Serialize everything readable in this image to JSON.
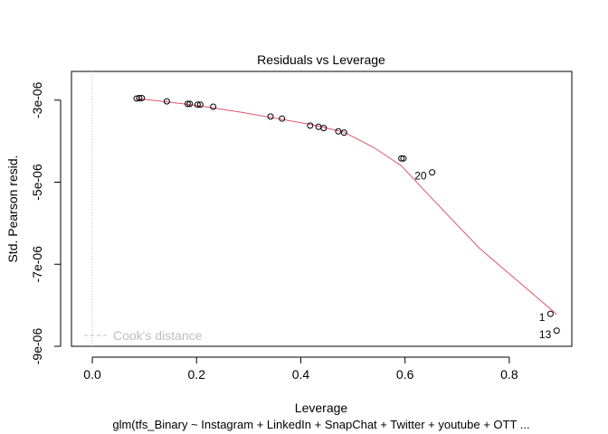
{
  "chart_data": {
    "type": "scatter",
    "title": "Residuals vs Leverage",
    "xlabel": "Leverage",
    "ylabel": "Std. Pearson resid.",
    "subtitle": "glm(tfs_Binary ~ Instagram + LinkedIn + SnapChat + Twitter + youtube + OTT  ...",
    "xlim": [
      -0.04,
      0.92
    ],
    "ylim": [
      -9e-06,
      -2.3e-06
    ],
    "x_ticks": [
      0.0,
      0.2,
      0.4,
      0.6,
      0.8
    ],
    "x_tick_labels": [
      "0.0",
      "0.2",
      "0.4",
      "0.6",
      "0.8"
    ],
    "y_ticks": [
      -3e-06,
      -5e-06,
      -7e-06,
      -9e-06
    ],
    "y_tick_labels": [
      "-3e-06",
      "-5e-06",
      "-7e-06",
      "-9e-06"
    ],
    "points": [
      {
        "x": 0.085,
        "y": -2.96e-06
      },
      {
        "x": 0.09,
        "y": -2.95e-06
      },
      {
        "x": 0.095,
        "y": -2.95e-06
      },
      {
        "x": 0.143,
        "y": -3.03e-06
      },
      {
        "x": 0.183,
        "y": -3.09e-06
      },
      {
        "x": 0.187,
        "y": -3.09e-06
      },
      {
        "x": 0.202,
        "y": -3.11e-06
      },
      {
        "x": 0.207,
        "y": -3.11e-06
      },
      {
        "x": 0.232,
        "y": -3.16e-06
      },
      {
        "x": 0.342,
        "y": -3.4e-06
      },
      {
        "x": 0.364,
        "y": -3.45e-06
      },
      {
        "x": 0.418,
        "y": -3.62e-06
      },
      {
        "x": 0.434,
        "y": -3.65e-06
      },
      {
        "x": 0.444,
        "y": -3.68e-06
      },
      {
        "x": 0.472,
        "y": -3.76e-06
      },
      {
        "x": 0.483,
        "y": -3.79e-06
      },
      {
        "x": 0.593,
        "y": -4.42e-06
      },
      {
        "x": 0.597,
        "y": -4.42e-06
      },
      {
        "x": 0.652,
        "y": -4.76e-06,
        "label": "20"
      },
      {
        "x": 0.879,
        "y": -8.21e-06,
        "label": "1"
      },
      {
        "x": 0.891,
        "y": -8.62e-06,
        "label": "13"
      }
    ],
    "smooth_line": {
      "x": [
        0.085,
        0.143,
        0.207,
        0.283,
        0.342,
        0.418,
        0.483,
        0.541,
        0.593,
        0.652,
        0.742,
        0.891
      ],
      "y": [
        -2.96e-06,
        -3.04e-06,
        -3.14e-06,
        -3.29e-06,
        -3.42e-06,
        -3.59e-06,
        -3.78e-06,
        -4.16e-06,
        -4.6e-06,
        -5.4e-06,
        -6.6e-06,
        -8.22e-06
      ],
      "color": "#DF536B"
    },
    "reference_line": {
      "x": 0.0,
      "color": "#BEBEBE",
      "style": "dotted"
    },
    "legend": {
      "position": "bottom-left",
      "entries": [
        {
          "label": "Cook's distance",
          "color": "#BEBEBE",
          "style": "dashed"
        }
      ]
    },
    "grid": false
  }
}
